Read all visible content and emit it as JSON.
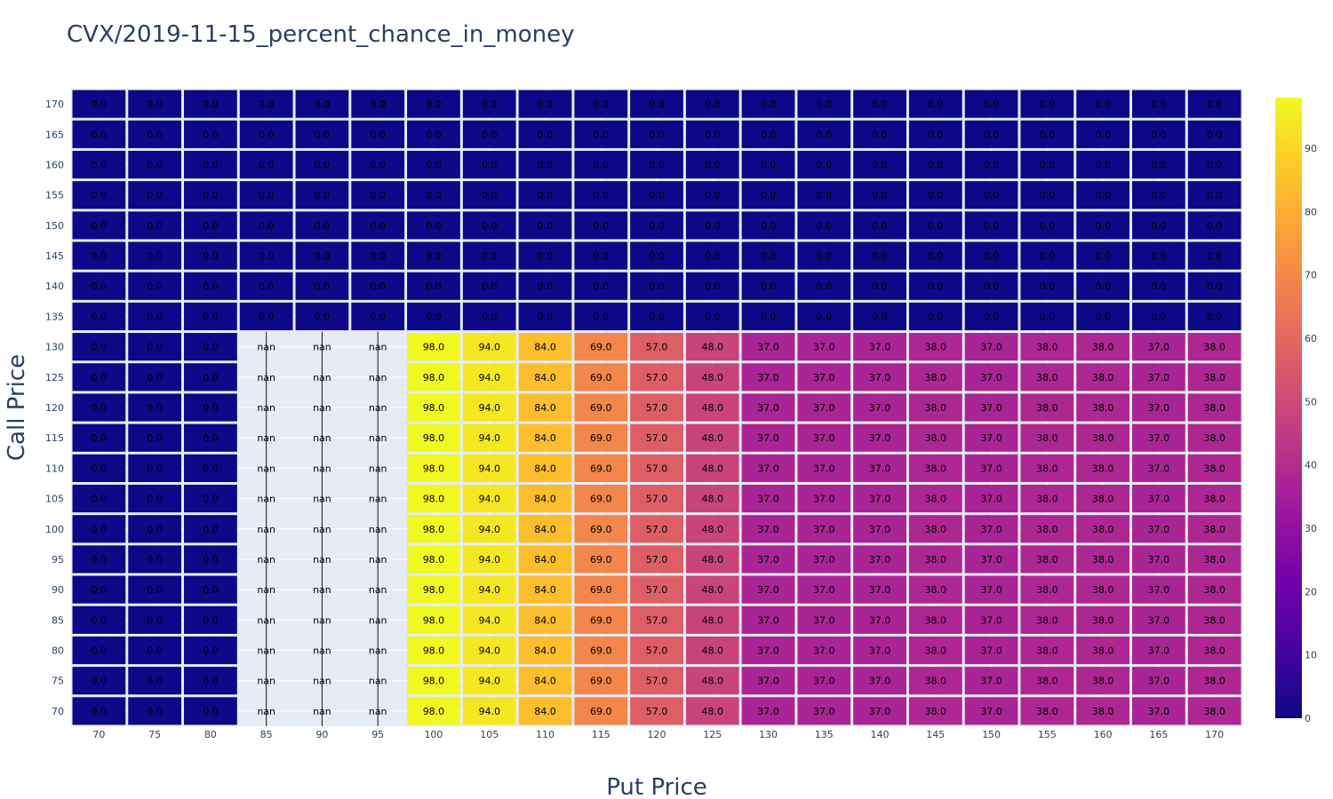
{
  "chart_data": {
    "type": "heatmap",
    "title": "CVX/2019-11-15_percent_chance_in_money",
    "xlabel": "Put Price",
    "ylabel": "Call Price",
    "x": [
      "70",
      "75",
      "80",
      "85",
      "90",
      "95",
      "100",
      "105",
      "110",
      "115",
      "120",
      "125",
      "130",
      "135",
      "140",
      "145",
      "150",
      "155",
      "160",
      "165",
      "170"
    ],
    "y": [
      "70",
      "75",
      "80",
      "85",
      "90",
      "95",
      "100",
      "105",
      "110",
      "115",
      "120",
      "125",
      "130",
      "135",
      "140",
      "145",
      "150",
      "155",
      "160",
      "165",
      "170"
    ],
    "upper_rows_value": 0.0,
    "upper_rows_from_call_price": "135",
    "lower_row_values": [
      0.0,
      0.0,
      0.0,
      null,
      null,
      null,
      98.0,
      94.0,
      84.0,
      69.0,
      57.0,
      48.0,
      37.0,
      37.0,
      37.0,
      38.0,
      37.0,
      38.0,
      38.0,
      37.0,
      38.0
    ],
    "nan_label": "nan",
    "value_format": "one decimal",
    "colorscale": "Plasma",
    "colorscale_stops": [
      "#0d0887",
      "#46039f",
      "#7201a8",
      "#9c179e",
      "#bd3786",
      "#d8576b",
      "#ed7953",
      "#fb9f3a",
      "#fdca26",
      "#f0f921"
    ],
    "zmin": 0,
    "zmax": 98,
    "colorbar_ticks": [
      "0",
      "10",
      "20",
      "30",
      "40",
      "50",
      "60",
      "70",
      "80",
      "90"
    ],
    "nan_cell_color": "#e5ecf6",
    "grid": true
  }
}
